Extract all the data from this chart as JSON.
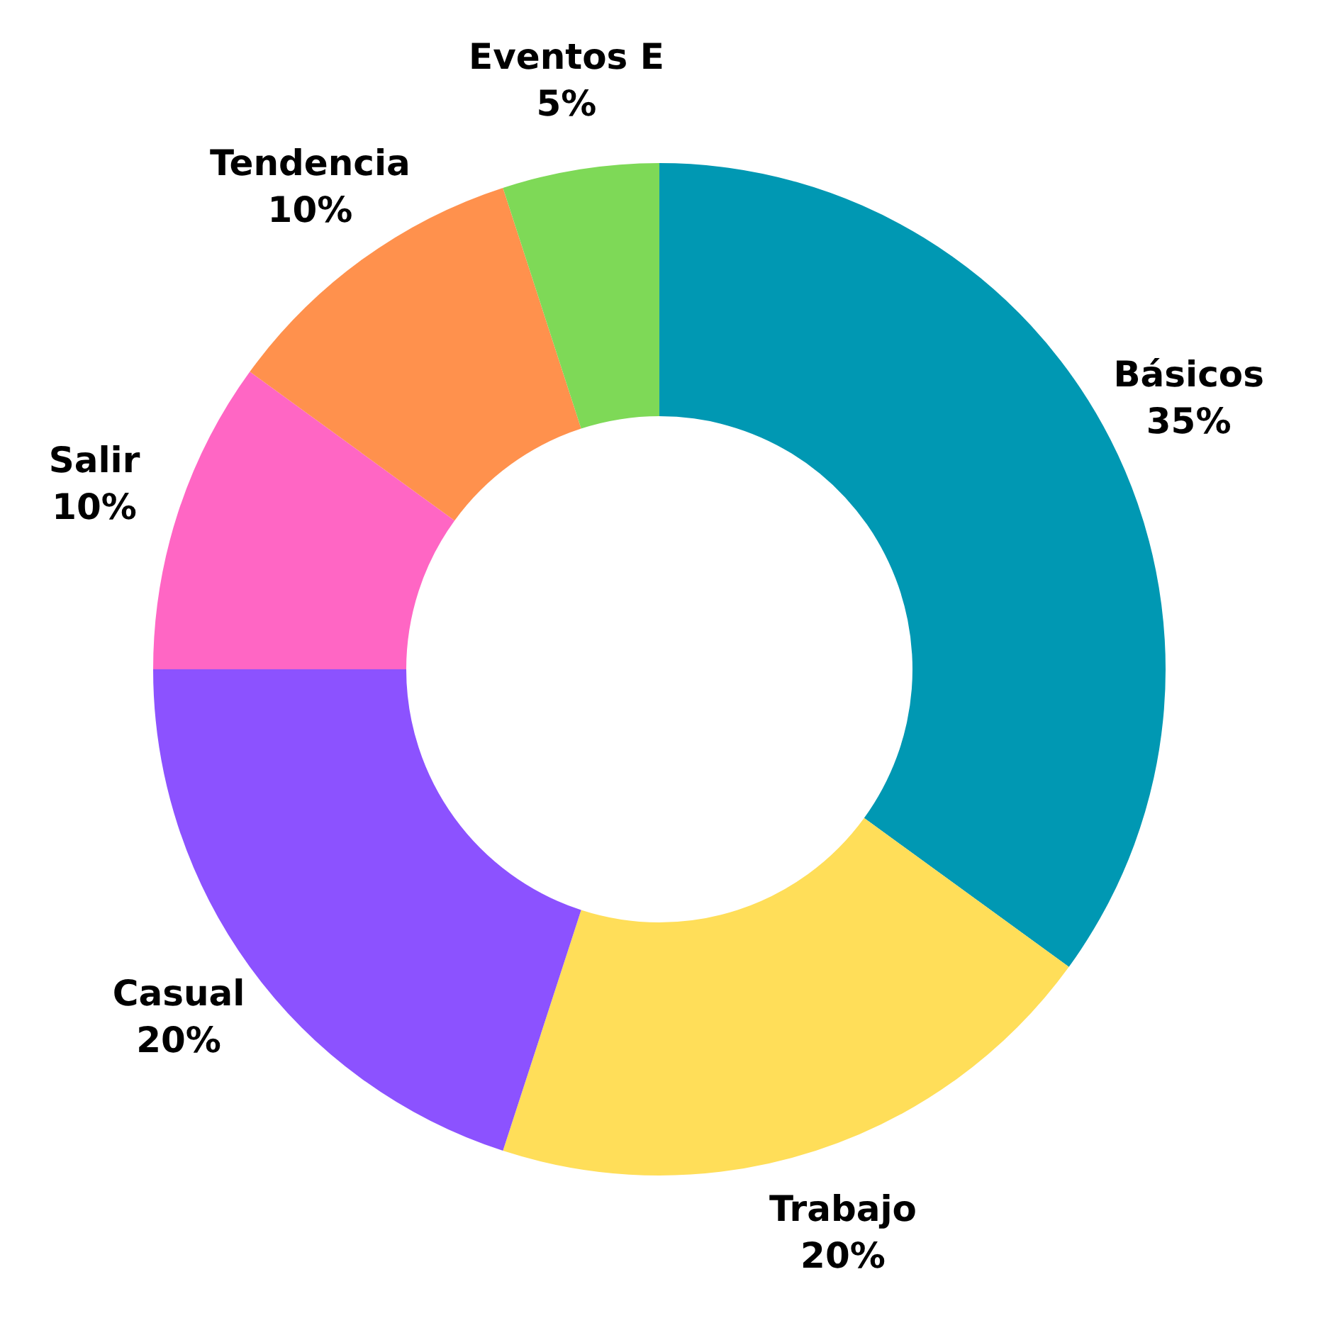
{
  "chart_data": {
    "type": "donut",
    "categories": [
      "Básicos",
      "Trabajo",
      "Casual",
      "Salir",
      "Tendencia",
      "Eventos E"
    ],
    "values": [
      35,
      20,
      20,
      10,
      10,
      5
    ],
    "colors": [
      "#0098b3",
      "#ffde59",
      "#8c52ff",
      "#ff66c4",
      "#ff914d",
      "#7ed957"
    ],
    "value_labels": [
      "35%",
      "20%",
      "20%",
      "10%",
      "10%",
      "5%"
    ]
  }
}
